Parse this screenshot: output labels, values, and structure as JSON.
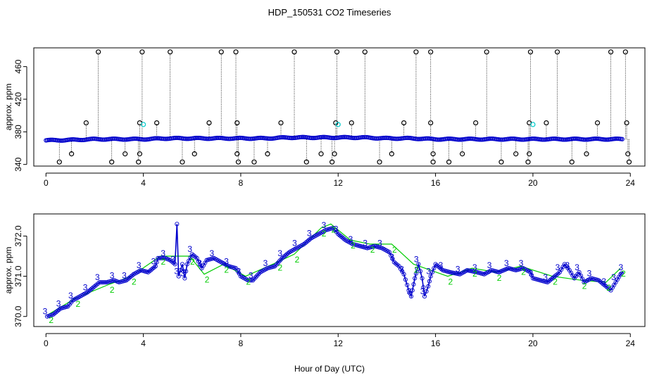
{
  "chart_data": {
    "title": "HDP_150531  CO2 Timeseries",
    "xlabel": "Hour of Day (UTC)",
    "colors": {
      "primary": "#0000cc",
      "secondary": "#00cc00",
      "highlight": "#00cccc",
      "raw": "#000000"
    },
    "panels": [
      {
        "type": "scatter",
        "name": "raw-co2",
        "ylabel": "approx. ppm",
        "xlim": [
          -0.5,
          24.6
        ],
        "ylim": [
          338,
          483
        ],
        "xticks": [
          0,
          4,
          8,
          12,
          16,
          20,
          24
        ],
        "yticks": [
          340,
          380,
          420,
          460
        ],
        "baseline": [
          [
            0,
            369.5
          ],
          [
            1,
            370
          ],
          [
            2,
            371
          ],
          [
            3,
            371
          ],
          [
            4,
            371
          ],
          [
            5,
            372
          ],
          [
            6,
            372
          ],
          [
            7,
            372
          ],
          [
            8,
            372
          ],
          [
            9,
            372
          ],
          [
            10,
            373
          ],
          [
            11,
            373
          ],
          [
            12,
            373
          ],
          [
            13,
            373
          ],
          [
            14,
            372
          ],
          [
            15,
            372
          ],
          [
            16,
            371
          ],
          [
            17,
            371
          ],
          [
            18,
            371
          ],
          [
            19,
            371
          ],
          [
            20,
            371
          ],
          [
            21,
            371
          ],
          [
            22,
            371
          ],
          [
            23,
            371
          ],
          [
            23.7,
            371
          ]
        ],
        "high_points": [
          [
            2.15,
            478
          ],
          [
            3.95,
            478
          ],
          [
            5.1,
            478
          ],
          [
            7.2,
            478
          ],
          [
            7.8,
            478
          ],
          [
            10.2,
            478
          ],
          [
            11.95,
            478
          ],
          [
            13.1,
            478
          ],
          [
            15.2,
            478
          ],
          [
            15.8,
            478
          ],
          [
            18.1,
            478
          ],
          [
            19.9,
            478
          ],
          [
            21.0,
            478
          ],
          [
            23.2,
            478
          ],
          [
            23.8,
            478
          ]
        ],
        "mid_points": [
          [
            1.65,
            391
          ],
          [
            3.85,
            391
          ],
          [
            4.55,
            391
          ],
          [
            6.7,
            391
          ],
          [
            7.85,
            391
          ],
          [
            9.65,
            391
          ],
          [
            11.9,
            391
          ],
          [
            12.55,
            391
          ],
          [
            14.7,
            391
          ],
          [
            15.8,
            391
          ],
          [
            17.65,
            391
          ],
          [
            19.85,
            391
          ],
          [
            20.55,
            391
          ],
          [
            22.65,
            391
          ],
          [
            23.85,
            391
          ]
        ],
        "low_points": [
          [
            1.05,
            353
          ],
          [
            3.25,
            353
          ],
          [
            3.85,
            353
          ],
          [
            6.1,
            353
          ],
          [
            7.85,
            353
          ],
          [
            9.1,
            353
          ],
          [
            11.3,
            353
          ],
          [
            11.85,
            353
          ],
          [
            14.2,
            353
          ],
          [
            15.9,
            353
          ],
          [
            17.1,
            353
          ],
          [
            19.3,
            353
          ],
          [
            19.85,
            353
          ],
          [
            22.2,
            353
          ],
          [
            23.9,
            353
          ]
        ],
        "bottom_points": [
          [
            0.55,
            343
          ],
          [
            2.7,
            343
          ],
          [
            3.8,
            343
          ],
          [
            5.6,
            343
          ],
          [
            7.9,
            343
          ],
          [
            8.55,
            343
          ],
          [
            10.7,
            343
          ],
          [
            11.75,
            343
          ],
          [
            13.7,
            343
          ],
          [
            15.9,
            343
          ],
          [
            16.55,
            343
          ],
          [
            18.7,
            343
          ],
          [
            19.8,
            343
          ],
          [
            21.6,
            343
          ],
          [
            23.95,
            343
          ]
        ],
        "cyan_points": [
          [
            4.0,
            389
          ],
          [
            12.0,
            389
          ],
          [
            20.0,
            389
          ]
        ]
      },
      {
        "type": "line",
        "name": "processed-co2",
        "ylabel": "approx. ppm",
        "xlim": [
          -0.5,
          24.6
        ],
        "ylim": [
          369.75,
          372.55
        ],
        "xticks": [
          0,
          4,
          8,
          12,
          16,
          20,
          24
        ],
        "yticks": [
          370.0,
          371.0,
          372.0
        ],
        "ytick_labels": [
          "370.0",
          "371.0",
          "372.0"
        ],
        "series": [
          {
            "name": "primary",
            "marker": "3",
            "points": [
              [
                0.05,
                370.0
              ],
              [
                0.3,
                370.05
              ],
              [
                0.6,
                370.2
              ],
              [
                0.9,
                370.25
              ],
              [
                1.1,
                370.4
              ],
              [
                1.4,
                370.5
              ],
              [
                1.7,
                370.6
              ],
              [
                2.0,
                370.75
              ],
              [
                2.2,
                370.85
              ],
              [
                2.5,
                370.85
              ],
              [
                2.8,
                370.9
              ],
              [
                3.0,
                370.85
              ],
              [
                3.3,
                370.9
              ],
              [
                3.6,
                371.05
              ],
              [
                3.9,
                371.15
              ],
              [
                4.2,
                371.1
              ],
              [
                4.5,
                371.25
              ],
              [
                4.6,
                371.45
              ],
              [
                4.9,
                371.45
              ],
              [
                5.1,
                371.4
              ],
              [
                5.3,
                371.3
              ],
              [
                5.38,
                372.3
              ],
              [
                5.45,
                371.0
              ],
              [
                5.6,
                371.3
              ],
              [
                5.7,
                370.95
              ],
              [
                5.8,
                371.3
              ],
              [
                6.0,
                371.55
              ],
              [
                6.2,
                371.45
              ],
              [
                6.4,
                371.2
              ],
              [
                6.6,
                371.4
              ],
              [
                6.9,
                371.45
              ],
              [
                7.2,
                371.35
              ],
              [
                7.5,
                371.25
              ],
              [
                7.8,
                371.2
              ],
              [
                8.0,
                371.0
              ],
              [
                8.3,
                370.9
              ],
              [
                8.5,
                370.9
              ],
              [
                8.8,
                371.1
              ],
              [
                9.1,
                371.2
              ],
              [
                9.4,
                371.25
              ],
              [
                9.7,
                371.45
              ],
              [
                10.0,
                371.6
              ],
              [
                10.3,
                371.7
              ],
              [
                10.6,
                371.8
              ],
              [
                10.9,
                371.95
              ],
              [
                11.2,
                372.05
              ],
              [
                11.5,
                372.15
              ],
              [
                11.8,
                372.2
              ],
              [
                12.0,
                372.05
              ],
              [
                12.3,
                371.9
              ],
              [
                12.6,
                371.8
              ],
              [
                12.9,
                371.75
              ],
              [
                13.2,
                371.7
              ],
              [
                13.5,
                371.75
              ],
              [
                13.8,
                371.7
              ],
              [
                14.1,
                371.6
              ],
              [
                14.3,
                371.35
              ],
              [
                14.5,
                371.25
              ],
              [
                14.7,
                371.05
              ],
              [
                14.9,
                370.65
              ],
              [
                15.0,
                370.5
              ],
              [
                15.15,
                370.95
              ],
              [
                15.3,
                371.3
              ],
              [
                15.45,
                370.95
              ],
              [
                15.55,
                370.5
              ],
              [
                15.7,
                370.75
              ],
              [
                15.8,
                371.0
              ],
              [
                16.0,
                371.3
              ],
              [
                16.3,
                371.15
              ],
              [
                16.6,
                371.1
              ],
              [
                17.0,
                371.05
              ],
              [
                17.3,
                371.15
              ],
              [
                17.7,
                371.1
              ],
              [
                18.0,
                371.05
              ],
              [
                18.3,
                371.15
              ],
              [
                18.6,
                371.1
              ],
              [
                19.0,
                371.2
              ],
              [
                19.3,
                371.15
              ],
              [
                19.6,
                371.2
              ],
              [
                19.9,
                371.1
              ],
              [
                20.0,
                370.95
              ],
              [
                20.3,
                370.9
              ],
              [
                20.6,
                370.85
              ],
              [
                20.9,
                371.0
              ],
              [
                21.1,
                371.1
              ],
              [
                21.3,
                371.3
              ],
              [
                21.5,
                371.15
              ],
              [
                21.7,
                370.95
              ],
              [
                21.9,
                371.1
              ],
              [
                22.1,
                370.85
              ],
              [
                22.4,
                370.95
              ],
              [
                22.7,
                370.9
              ],
              [
                23.0,
                370.75
              ],
              [
                23.2,
                370.65
              ],
              [
                23.4,
                370.85
              ],
              [
                23.6,
                371.05
              ],
              [
                23.7,
                371.1
              ]
            ]
          },
          {
            "name": "secondary",
            "marker": "2",
            "points": [
              [
                0.1,
                370.05
              ],
              [
                1.2,
                370.45
              ],
              [
                2.6,
                370.8
              ],
              [
                3.5,
                371.0
              ],
              [
                4.7,
                371.5
              ],
              [
                5.9,
                371.5
              ],
              [
                6.5,
                371.05
              ],
              [
                7.3,
                371.3
              ],
              [
                8.2,
                371.0
              ],
              [
                9.5,
                371.35
              ],
              [
                10.2,
                371.55
              ],
              [
                11.3,
                372.2
              ],
              [
                11.7,
                372.3
              ],
              [
                12.5,
                371.9
              ],
              [
                13.3,
                371.8
              ],
              [
                14.2,
                371.8
              ],
              [
                15.1,
                371.3
              ],
              [
                16.5,
                371.0
              ],
              [
                17.5,
                371.2
              ],
              [
                18.5,
                371.1
              ],
              [
                19.5,
                371.25
              ],
              [
                20.8,
                371.0
              ],
              [
                22.0,
                370.9
              ],
              [
                23.0,
                370.85
              ],
              [
                23.6,
                371.2
              ]
            ]
          }
        ]
      }
    ]
  }
}
